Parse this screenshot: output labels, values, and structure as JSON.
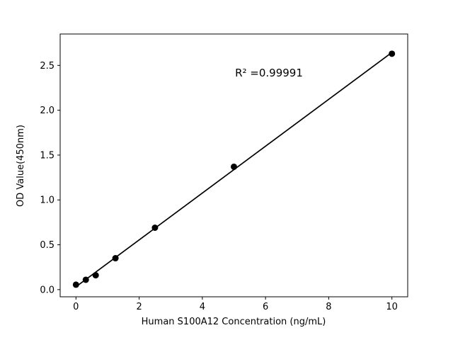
{
  "chart_data": {
    "type": "scatter",
    "title": "",
    "xlabel": "Human S100A12 Concentration (ng/mL)",
    "ylabel": "OD Value(450nm)",
    "annotation": "R² =0.99991",
    "x": [
      0,
      0.3125,
      0.625,
      1.25,
      2.5,
      5,
      10
    ],
    "y": [
      0.055,
      0.11,
      0.16,
      0.35,
      0.69,
      1.37,
      2.63
    ],
    "xlim": [
      -0.5,
      10.5
    ],
    "ylim": [
      -0.08,
      2.85
    ],
    "xticks": {
      "values": [
        0,
        2,
        4,
        6,
        8,
        10
      ],
      "labels": [
        "0",
        "2",
        "4",
        "6",
        "8",
        "10"
      ]
    },
    "yticks": {
      "values": [
        0.0,
        0.5,
        1.0,
        1.5,
        2.0,
        2.5
      ],
      "labels": [
        "0.0",
        "0.5",
        "1.0",
        "1.5",
        "2.0",
        "2.5"
      ]
    },
    "line": "linear-fit",
    "legend": "none",
    "grid": false,
    "marker_color": "#000000",
    "line_color": "#000000",
    "background": "#ffffff"
  }
}
